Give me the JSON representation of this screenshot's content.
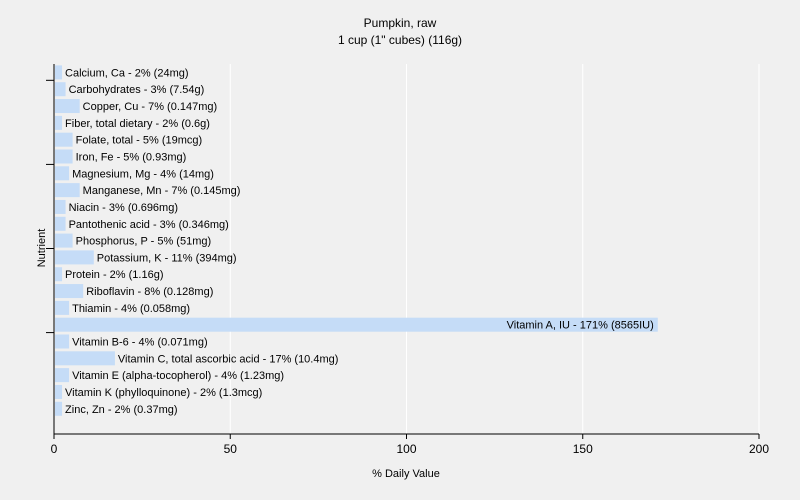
{
  "chart_data": {
    "type": "bar",
    "orientation": "horizontal",
    "title": "Pumpkin, raw",
    "subtitle": "1 cup (1\" cubes) (116g)",
    "xlabel": "% Daily Value",
    "ylabel": "Nutrient",
    "xlim": [
      0,
      200
    ],
    "xticks": [
      0,
      50,
      100,
      150,
      200
    ],
    "grid": true,
    "colors": {
      "bar": "#c5dcf7",
      "grid": "#ffffff",
      "plot_bg": "#f0f0f0",
      "axis": "#000000"
    },
    "categories": [
      "Calcium, Ca",
      "Carbohydrates",
      "Copper, Cu",
      "Fiber, total dietary",
      "Folate, total",
      "Iron, Fe",
      "Magnesium, Mg",
      "Manganese, Mn",
      "Niacin",
      "Pantothenic acid",
      "Phosphorus, P",
      "Potassium, K",
      "Protein",
      "Riboflavin",
      "Thiamin",
      "Vitamin A, IU",
      "Vitamin B-6",
      "Vitamin C, total ascorbic acid",
      "Vitamin E (alpha-tocopherol)",
      "Vitamin K (phylloquinone)",
      "Zinc, Zn"
    ],
    "values": [
      2,
      3,
      7,
      2,
      5,
      5,
      4,
      7,
      3,
      3,
      5,
      11,
      2,
      8,
      4,
      171,
      4,
      17,
      4,
      2,
      2
    ],
    "labels": [
      "Calcium, Ca - 2% (24mg)",
      "Carbohydrates - 3% (7.54g)",
      "Copper, Cu - 7% (0.147mg)",
      "Fiber, total dietary - 2% (0.6g)",
      "Folate, total - 5% (19mcg)",
      "Iron, Fe - 5% (0.93mg)",
      "Magnesium, Mg - 4% (14mg)",
      "Manganese, Mn - 7% (0.145mg)",
      "Niacin - 3% (0.696mg)",
      "Pantothenic acid - 3% (0.346mg)",
      "Phosphorus, P - 5% (51mg)",
      "Potassium, K - 11% (394mg)",
      "Protein - 2% (1.16g)",
      "Riboflavin - 8% (0.128mg)",
      "Thiamin - 4% (0.058mg)",
      "Vitamin A, IU - 171% (8565IU)",
      "Vitamin B-6 - 4% (0.071mg)",
      "Vitamin C, total ascorbic acid - 17% (10.4mg)",
      "Vitamin E (alpha-tocopherol) - 4% (1.23mg)",
      "Vitamin K (phylloquinone) - 2% (1.3mcg)",
      "Zinc, Zn - 2% (0.37mg)"
    ]
  }
}
